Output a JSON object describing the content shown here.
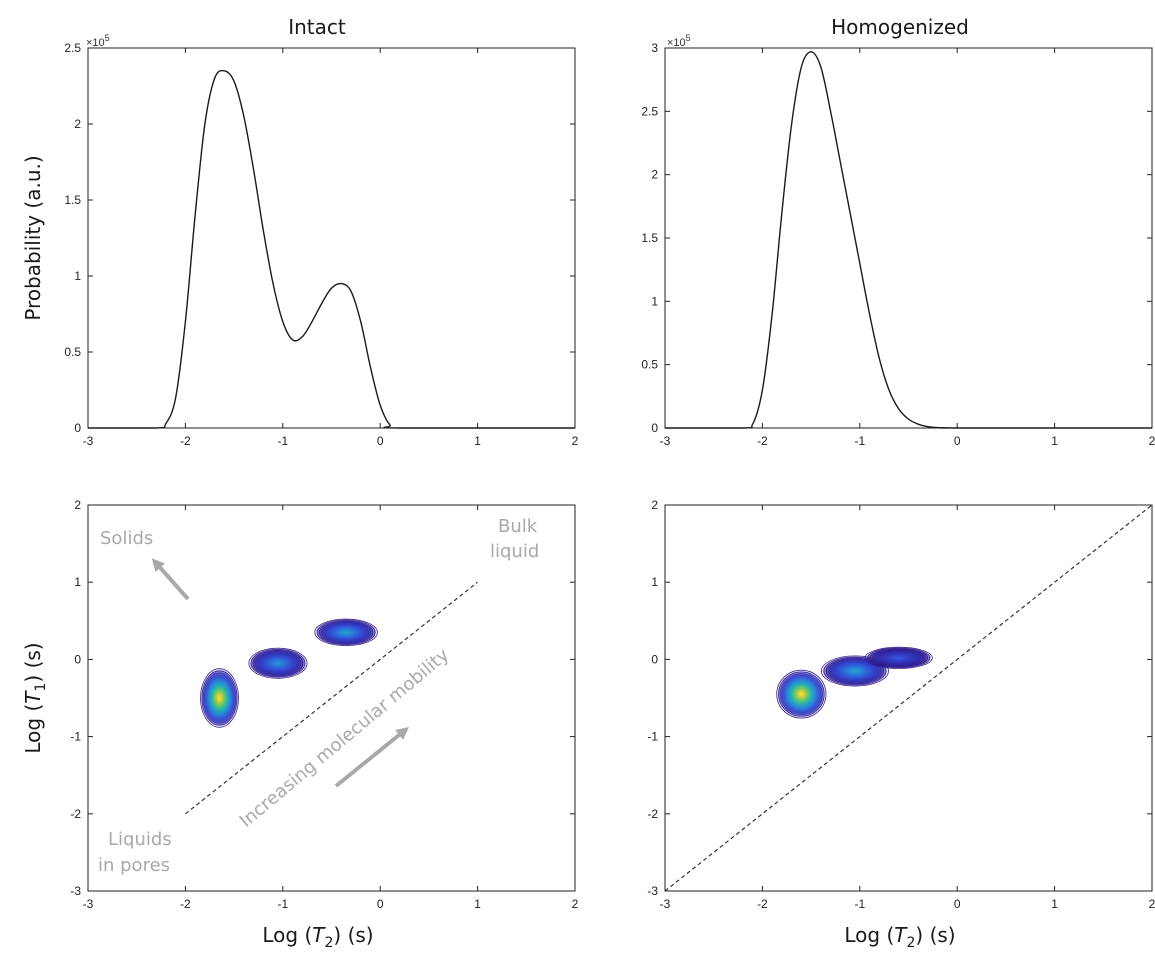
{
  "panels": {
    "intact_title": "Intact",
    "homogenized_title": "Homogenized"
  },
  "labels": {
    "y_top": "Probability (a.u.)",
    "y_bottom_prefix": "Log (",
    "y_bottom_var": "T",
    "y_bottom_sub": "1",
    "y_bottom_suffix": ")  (s)",
    "x_prefix": "Log (",
    "x_var": "T",
    "x_sub": "2",
    "x_suffix": ")  (s)",
    "exponent_base": "×10",
    "exponent_power": "5"
  },
  "annotations": {
    "solids": "Solids",
    "bulk_1": "Bulk",
    "bulk_2": "liquid",
    "pores_1": "Liquids",
    "pores_2": "in pores",
    "mobility": "Increasing molecular mobility"
  },
  "colors": {
    "line": "#1a1a1a",
    "annotation": "#a9a9a9",
    "contour_low": "#3b1c8c",
    "contour_mid": "#2fb4a8",
    "contour_high": "#f7d13d"
  },
  "chart_data": [
    {
      "id": "intact_t2",
      "type": "line",
      "title": "Intact",
      "xlabel": "Log (T2) (s)",
      "ylabel": "Probability (a.u.)",
      "xlim": [
        -3,
        2
      ],
      "ylim": [
        0,
        250000
      ],
      "x_ticks": [
        -3,
        -2,
        -1,
        0,
        1,
        2
      ],
      "y_ticks": [
        0,
        0.5,
        1,
        1.5,
        2,
        2.5
      ],
      "y_multiplier": "×10^5",
      "x": [
        -3.0,
        -2.3,
        -2.2,
        -2.1,
        -2.0,
        -1.9,
        -1.8,
        -1.7,
        -1.6,
        -1.5,
        -1.4,
        -1.3,
        -1.2,
        -1.1,
        -1.0,
        -0.9,
        -0.8,
        -0.7,
        -0.6,
        -0.5,
        -0.4,
        -0.3,
        -0.2,
        -0.1,
        0.0,
        0.1,
        0.2,
        2.0
      ],
      "y": [
        0,
        0,
        3000,
        20000,
        70000,
        140000,
        200000,
        230000,
        235000,
        228000,
        205000,
        170000,
        130000,
        95000,
        70000,
        58000,
        60000,
        70000,
        82000,
        92000,
        95000,
        90000,
        70000,
        40000,
        15000,
        2000,
        0,
        0
      ]
    },
    {
      "id": "homogenized_t2",
      "type": "line",
      "title": "Homogenized",
      "xlabel": "Log (T2) (s)",
      "ylabel": "",
      "xlim": [
        -3,
        2
      ],
      "ylim": [
        0,
        300000
      ],
      "x_ticks": [
        -3,
        -2,
        -1,
        0,
        1,
        2
      ],
      "y_ticks": [
        0,
        0.5,
        1,
        1.5,
        2,
        2.5,
        3
      ],
      "y_multiplier": "×10^5",
      "x": [
        -3.0,
        -2.2,
        -2.1,
        -2.0,
        -1.9,
        -1.8,
        -1.7,
        -1.6,
        -1.5,
        -1.4,
        -1.3,
        -1.2,
        -1.1,
        -1.0,
        -0.9,
        -0.8,
        -0.7,
        -0.6,
        -0.5,
        -0.4,
        -0.3,
        -0.2,
        -0.1,
        0.0,
        2.0
      ],
      "y": [
        0,
        0,
        3000,
        30000,
        90000,
        170000,
        240000,
        285000,
        297000,
        285000,
        250000,
        210000,
        170000,
        130000,
        90000,
        55000,
        30000,
        15000,
        7000,
        3000,
        1000,
        300,
        100,
        0,
        0
      ]
    },
    {
      "id": "intact_t1t2",
      "type": "heatmap",
      "xlabel": "Log (T2) (s)",
      "ylabel": "Log (T1) (s)",
      "xlim": [
        -3,
        2
      ],
      "ylim": [
        -3,
        2
      ],
      "x_ticks": [
        -3,
        -2,
        -1,
        0,
        1,
        2
      ],
      "y_ticks": [
        -3,
        -2,
        -1,
        0,
        1,
        2
      ],
      "diagonal": [
        [
          -2,
          -2
        ],
        [
          1,
          1
        ]
      ],
      "peaks": [
        {
          "x": -1.65,
          "y": -0.5,
          "sx": 0.17,
          "sy": 0.33,
          "amp": 1.0
        },
        {
          "x": -1.05,
          "y": -0.05,
          "sx": 0.26,
          "sy": 0.17,
          "amp": 0.45
        },
        {
          "x": -0.35,
          "y": 0.35,
          "sx": 0.28,
          "sy": 0.15,
          "amp": 0.5
        }
      ]
    },
    {
      "id": "homogenized_t1t2",
      "type": "heatmap",
      "xlabel": "Log (T2) (s)",
      "ylabel": "",
      "xlim": [
        -3,
        2
      ],
      "ylim": [
        -3,
        2
      ],
      "x_ticks": [
        -3,
        -2,
        -1,
        0,
        1,
        2
      ],
      "y_ticks": [
        -3,
        -2,
        -1,
        0,
        1,
        2
      ],
      "diagonal": [
        [
          -3,
          -3
        ],
        [
          2,
          2
        ]
      ],
      "peaks": [
        {
          "x": -1.6,
          "y": -0.45,
          "sx": 0.22,
          "sy": 0.27,
          "amp": 1.0
        },
        {
          "x": -1.05,
          "y": -0.15,
          "sx": 0.3,
          "sy": 0.17,
          "amp": 0.5
        },
        {
          "x": -0.6,
          "y": 0.02,
          "sx": 0.3,
          "sy": 0.12,
          "amp": 0.28
        }
      ]
    }
  ]
}
